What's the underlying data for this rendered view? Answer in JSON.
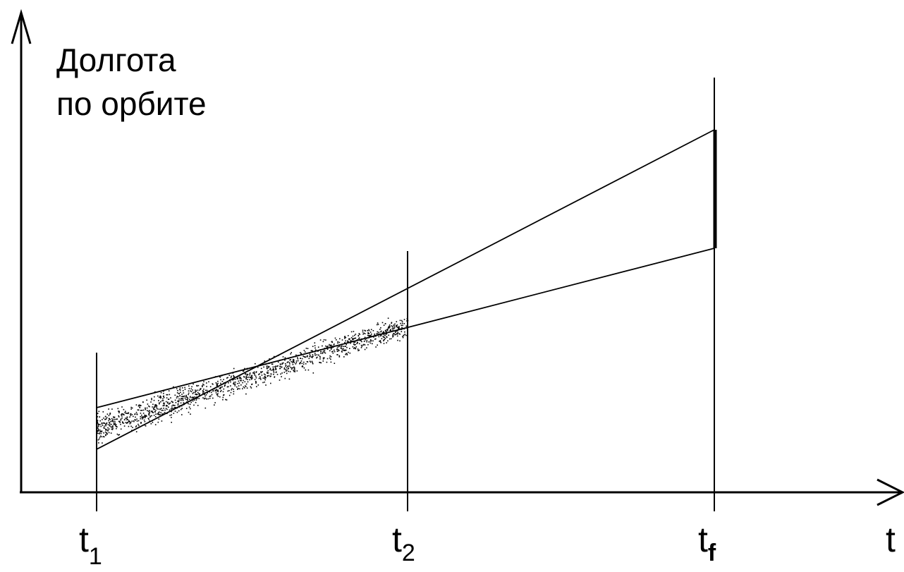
{
  "y_axis_label": {
    "line1": "Долгота",
    "line2": "по орбите"
  },
  "x_axis_label": "t",
  "ticks": [
    {
      "base": "t",
      "sub": "1"
    },
    {
      "base": "t",
      "sub": "2"
    },
    {
      "base": "t",
      "sub": "f"
    }
  ],
  "colors": {
    "ink": "#000000",
    "background": "#ffffff"
  }
}
